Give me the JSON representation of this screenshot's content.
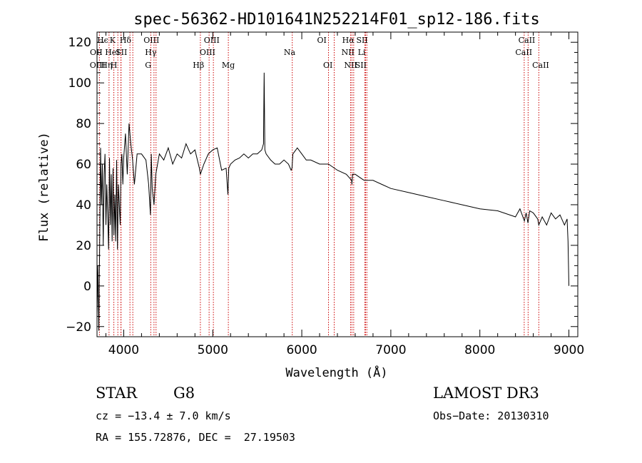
{
  "chart_data": {
    "type": "line",
    "title": "spec-56362-HD101641N252214F01_sp12-186.fits",
    "xlabel": "Wavelength (Å)",
    "ylabel": "Flux (relative)",
    "xlim": [
      3700,
      9100
    ],
    "ylim": [
      -25,
      125
    ],
    "xticks": [
      4000,
      5000,
      6000,
      7000,
      8000,
      9000
    ],
    "yticks": [
      -20,
      0,
      20,
      40,
      60,
      80,
      100,
      120
    ],
    "series": [
      {
        "name": "spectrum",
        "x": [
          3700,
          3710,
          3720,
          3730,
          3740,
          3750,
          3760,
          3770,
          3780,
          3790,
          3800,
          3810,
          3820,
          3830,
          3840,
          3850,
          3860,
          3870,
          3880,
          3890,
          3900,
          3910,
          3920,
          3930,
          3940,
          3950,
          3960,
          3970,
          3980,
          3990,
          4000,
          4020,
          4040,
          4060,
          4080,
          4100,
          4120,
          4150,
          4200,
          4250,
          4280,
          4300,
          4310,
          4320,
          4340,
          4360,
          4400,
          4450,
          4500,
          4550,
          4600,
          4650,
          4700,
          4750,
          4800,
          4850,
          4861,
          4900,
          4950,
          5000,
          5050,
          5100,
          5150,
          5170,
          5180,
          5200,
          5250,
          5300,
          5350,
          5400,
          5450,
          5500,
          5550,
          5570,
          5577,
          5585,
          5600,
          5650,
          5700,
          5750,
          5800,
          5850,
          5880,
          5890,
          5900,
          5950,
          6000,
          6050,
          6100,
          6200,
          6300,
          6400,
          6500,
          6560,
          6563,
          6570,
          6600,
          6700,
          6800,
          6900,
          7000,
          7200,
          7400,
          7600,
          7800,
          8000,
          8200,
          8400,
          8450,
          8500,
          8520,
          8540,
          8560,
          8600,
          8650,
          8662,
          8700,
          8750,
          8800,
          8850,
          8900,
          8950,
          8980,
          8990,
          9000
        ],
        "y": [
          -15,
          10,
          -22,
          20,
          68,
          40,
          60,
          20,
          55,
          65,
          30,
          50,
          35,
          18,
          63,
          30,
          55,
          22,
          58,
          25,
          45,
          22,
          62,
          18,
          50,
          40,
          30,
          60,
          65,
          50,
          63,
          75,
          55,
          80,
          70,
          62,
          50,
          65,
          65,
          62,
          50,
          35,
          65,
          48,
          40,
          55,
          65,
          62,
          68,
          60,
          65,
          63,
          70,
          65,
          67,
          58,
          55,
          60,
          65,
          67,
          68,
          57,
          58,
          45,
          58,
          60,
          62,
          63,
          65,
          63,
          65,
          65,
          67,
          70,
          105,
          67,
          65,
          62,
          60,
          60,
          62,
          60,
          57,
          58,
          65,
          68,
          65,
          62,
          62,
          60,
          60,
          57,
          55,
          52,
          50,
          55,
          55,
          52,
          52,
          50,
          48,
          46,
          44,
          42,
          40,
          38,
          37,
          34,
          38,
          32,
          36,
          31,
          37,
          36,
          33,
          30,
          34,
          30,
          36,
          33,
          35,
          30,
          33,
          22,
          0
        ],
        "color": "#000000"
      }
    ],
    "reference_lines": [
      {
        "name": "H-epsilon-line",
        "x": 3970
      },
      {
        "name": "K-line",
        "x": 3934
      },
      {
        "name": "H-delta-line",
        "x": 4102
      },
      {
        "name": "OII-line",
        "x": 3727
      },
      {
        "name": "HeI-line",
        "x": 3889
      },
      {
        "name": "SII-line-4070",
        "x": 4070
      },
      {
        "name": "OIII-line-4363",
        "x": 4363
      },
      {
        "name": "H-gamma-line",
        "x": 4340
      },
      {
        "name": "G-band-line",
        "x": 4304
      },
      {
        "name": "H-eta-line",
        "x": 3835
      },
      {
        "name": "H-line",
        "x": 3968
      },
      {
        "name": "H-beta-line",
        "x": 4861
      },
      {
        "name": "OIII-line-4959",
        "x": 4959
      },
      {
        "name": "OIII-line-5007",
        "x": 5007
      },
      {
        "name": "Mg-line",
        "x": 5175
      },
      {
        "name": "Na-line",
        "x": 5893
      },
      {
        "name": "OI-line-6300",
        "x": 6300
      },
      {
        "name": "OI-line-6364",
        "x": 6364
      },
      {
        "name": "H-alpha-line",
        "x": 6563
      },
      {
        "name": "NII-line-6548",
        "x": 6548
      },
      {
        "name": "NII-line-6583",
        "x": 6583
      },
      {
        "name": "SII-line-6716",
        "x": 6716
      },
      {
        "name": "SII-line-6731",
        "x": 6731
      },
      {
        "name": "Li-line",
        "x": 6708
      },
      {
        "name": "CaII-line-8498",
        "x": 8498
      },
      {
        "name": "CaII-line-8542",
        "x": 8542
      },
      {
        "name": "CaII-line-8662",
        "x": 8662
      }
    ],
    "line_labels": [
      {
        "name": "label-h-epsilon",
        "text": "Hϵ",
        "x": 3700,
        "row": 0
      },
      {
        "name": "label-k",
        "text": "K",
        "x": 3842,
        "row": 0
      },
      {
        "name": "label-h-delta",
        "text": "Hδ",
        "x": 3955,
        "row": 0
      },
      {
        "name": "label-oiii-top",
        "text": "OIII",
        "x": 4223,
        "row": 0
      },
      {
        "name": "label-oiii-hbeta",
        "text": "OIII",
        "x": 4900,
        "row": 0
      },
      {
        "name": "label-oi-top",
        "text": "OI",
        "x": 6172,
        "row": 0
      },
      {
        "name": "label-halpha",
        "text": "Hα",
        "x": 6453,
        "row": 0
      },
      {
        "name": "label-sii-top",
        "text": "SII",
        "x": 6612,
        "row": 0
      },
      {
        "name": "label-caii-top",
        "text": "CaII",
        "x": 8432,
        "row": 0
      },
      {
        "name": "label-oii",
        "text": "OII",
        "x": 3620,
        "row": 1
      },
      {
        "name": "label-hei",
        "text": "HeI",
        "x": 3790,
        "row": 1
      },
      {
        "name": "label-sii-left",
        "text": "SII",
        "x": 3909,
        "row": 1
      },
      {
        "name": "label-hgamma",
        "text": "Hγ",
        "x": 4239,
        "row": 1
      },
      {
        "name": "label-oiii-mid",
        "text": "OIII",
        "x": 4853,
        "row": 1
      },
      {
        "name": "label-na",
        "text": "Na",
        "x": 5798,
        "row": 1
      },
      {
        "name": "label-nii-top",
        "text": "NII",
        "x": 6445,
        "row": 1
      },
      {
        "name": "label-li",
        "text": "Li",
        "x": 6629,
        "row": 1
      },
      {
        "name": "label-caii-mid",
        "text": "CaII",
        "x": 8398,
        "row": 1
      },
      {
        "name": "label-oiii-low",
        "text": "OIII",
        "x": 3618,
        "row": 2
      },
      {
        "name": "label-heta",
        "text": "Hη",
        "x": 3742,
        "row": 2
      },
      {
        "name": "label-h",
        "text": "H",
        "x": 3850,
        "row": 2
      },
      {
        "name": "label-g",
        "text": "G",
        "x": 4239,
        "row": 2
      },
      {
        "name": "label-hbeta",
        "text": "Hβ",
        "x": 4776,
        "row": 2
      },
      {
        "name": "label-mg",
        "text": "Mg",
        "x": 5101,
        "row": 2
      },
      {
        "name": "label-oi-low",
        "text": "OI",
        "x": 6240,
        "row": 2
      },
      {
        "name": "label-nii-low",
        "text": "NII",
        "x": 6475,
        "row": 2
      },
      {
        "name": "label-sii-low",
        "text": "SII",
        "x": 6598,
        "row": 2
      },
      {
        "name": "label-caii-low",
        "text": "CaII",
        "x": 8588,
        "row": 2
      }
    ]
  },
  "info": {
    "object_class": "STAR",
    "subclass": "G8",
    "survey": "LAMOST DR3",
    "cz": "cz = −13.4 ± 7.0 km/s",
    "obs_date": "Obs−Date: 20130310",
    "coords": "RA = 155.72876, DEC =  27.19503"
  },
  "colors": {
    "spectrum": "#000000",
    "reference_line": "#cc0000",
    "axes": "#000000"
  }
}
